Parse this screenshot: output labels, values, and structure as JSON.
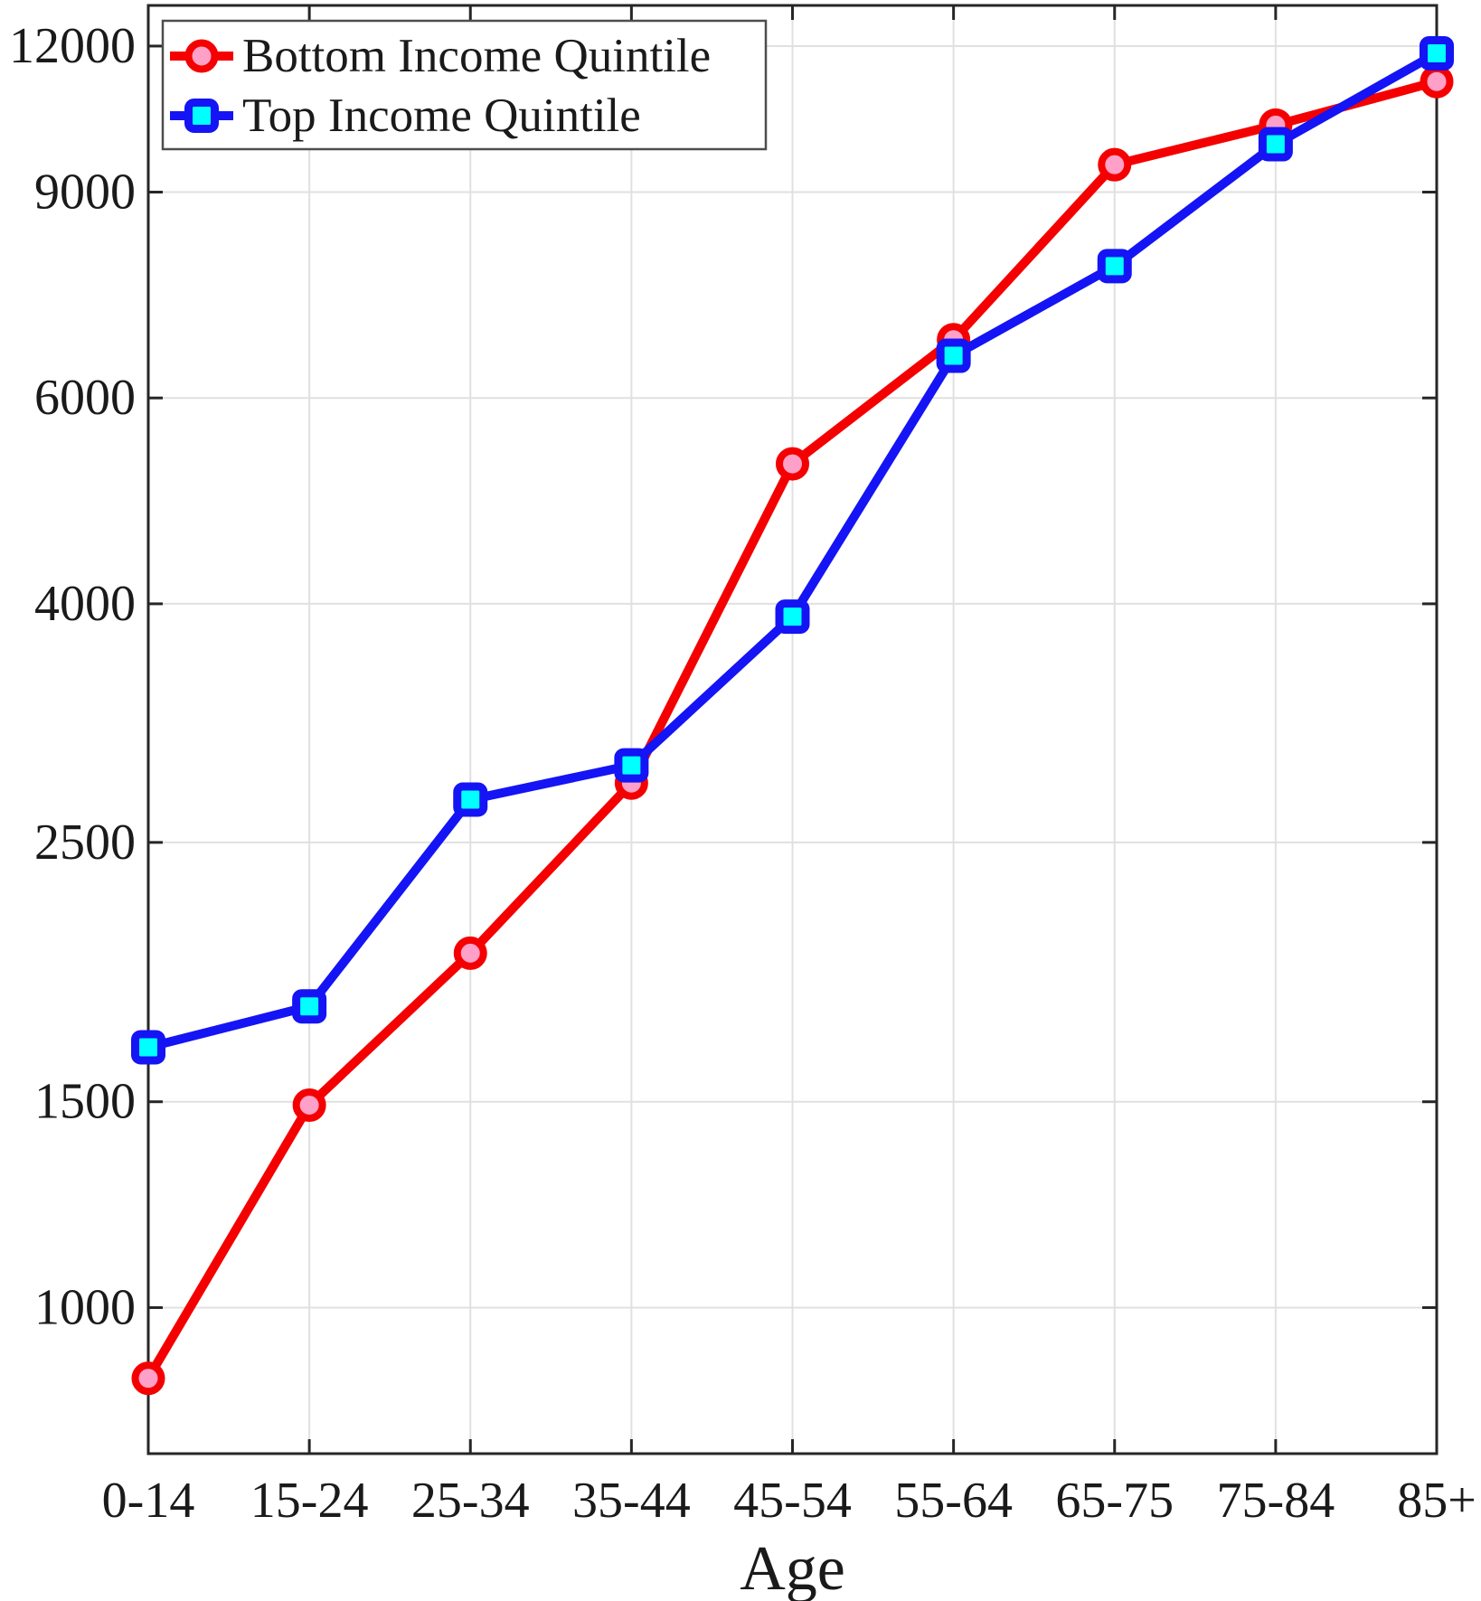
{
  "chart_data": {
    "type": "line",
    "title": "",
    "xlabel": "Age",
    "ylabel": "",
    "yscale": "log",
    "grid": true,
    "legend_position": "top-left",
    "categories": [
      "0-14",
      "15-24",
      "25-34",
      "35-44",
      "45-54",
      "55-64",
      "65-75",
      "75-84",
      "85+"
    ],
    "series": [
      {
        "name": "Bottom Income Quintile",
        "values": [
          870,
          1490,
          2010,
          2810,
          5270,
          6730,
          9500,
          10270,
          11190
        ],
        "line_color": "#f50000",
        "marker": "circle",
        "marker_fill": "#ffa0c8"
      },
      {
        "name": "Top Income Quintile",
        "values": [
          1670,
          1810,
          2720,
          2910,
          3900,
          6520,
          7780,
          9890,
          11830
        ],
        "line_color": "#1414f5",
        "marker": "square",
        "marker_fill": "#00ffff"
      }
    ],
    "yticks": [
      1000,
      1500,
      2500,
      4000,
      6000,
      9000,
      12000
    ],
    "ylim": [
      750,
      13000
    ],
    "colors": {
      "background": "#ffffff",
      "grid": "#e0e0e0",
      "axis": "#262626",
      "tick_text": "#1a1a1a",
      "legend_border": "#4d4d4d"
    }
  }
}
